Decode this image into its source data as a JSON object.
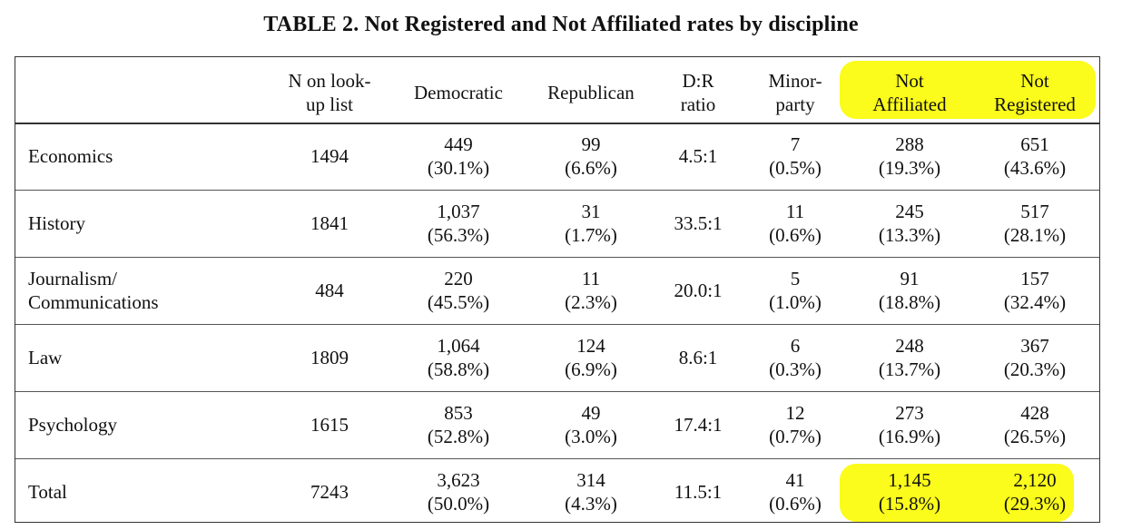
{
  "title": "TABLE 2. Not Registered and Not Affiliated rates by discipline",
  "highlight_color": "#fbfb1c",
  "columns": [
    [
      "N on look-",
      "up list"
    ],
    [
      "Democratic"
    ],
    [
      "Republican"
    ],
    [
      "D:R",
      "ratio"
    ],
    [
      "Minor-",
      "party"
    ],
    [
      "Not",
      "Affiliated"
    ],
    [
      "Not",
      "Registered"
    ]
  ],
  "rows": [
    {
      "name": [
        "Economics"
      ],
      "n": "1494",
      "dem": [
        "449",
        "(30.1%)"
      ],
      "rep": [
        "99",
        "(6.6%)"
      ],
      "ratio": "4.5:1",
      "minor": [
        "7",
        "(0.5%)"
      ],
      "na": [
        "288",
        "(19.3%)"
      ],
      "nr": [
        "651",
        "(43.6%)"
      ]
    },
    {
      "name": [
        "History"
      ],
      "n": "1841",
      "dem": [
        "1,037",
        "(56.3%)"
      ],
      "rep": [
        "31",
        "(1.7%)"
      ],
      "ratio": "33.5:1",
      "minor": [
        "11",
        "(0.6%)"
      ],
      "na": [
        "245",
        "(13.3%)"
      ],
      "nr": [
        "517",
        "(28.1%)"
      ]
    },
    {
      "name": [
        "Journalism/",
        "Communications"
      ],
      "n": "484",
      "dem": [
        "220",
        "(45.5%)"
      ],
      "rep": [
        "11",
        "(2.3%)"
      ],
      "ratio": "20.0:1",
      "minor": [
        "5",
        "(1.0%)"
      ],
      "na": [
        "91",
        "(18.8%)"
      ],
      "nr": [
        "157",
        "(32.4%)"
      ]
    },
    {
      "name": [
        "Law"
      ],
      "n": "1809",
      "dem": [
        "1,064",
        "(58.8%)"
      ],
      "rep": [
        "124",
        "(6.9%)"
      ],
      "ratio": "8.6:1",
      "minor": [
        "6",
        "(0.3%)"
      ],
      "na": [
        "248",
        "(13.7%)"
      ],
      "nr": [
        "367",
        "(20.3%)"
      ]
    },
    {
      "name": [
        "Psychology"
      ],
      "n": "1615",
      "dem": [
        "853",
        "(52.8%)"
      ],
      "rep": [
        "49",
        "(3.0%)"
      ],
      "ratio": "17.4:1",
      "minor": [
        "12",
        "(0.7%)"
      ],
      "na": [
        "273",
        "(16.9%)"
      ],
      "nr": [
        "428",
        "(26.5%)"
      ]
    },
    {
      "name": [
        "Total"
      ],
      "n": "7243",
      "dem": [
        "3,623",
        "(50.0%)"
      ],
      "rep": [
        "314",
        "(4.3%)"
      ],
      "ratio": "11.5:1",
      "minor": [
        "41",
        "(0.6%)"
      ],
      "na": [
        "1,145",
        "(15.8%)"
      ],
      "nr": [
        "2,120",
        "(29.3%)"
      ]
    }
  ]
}
